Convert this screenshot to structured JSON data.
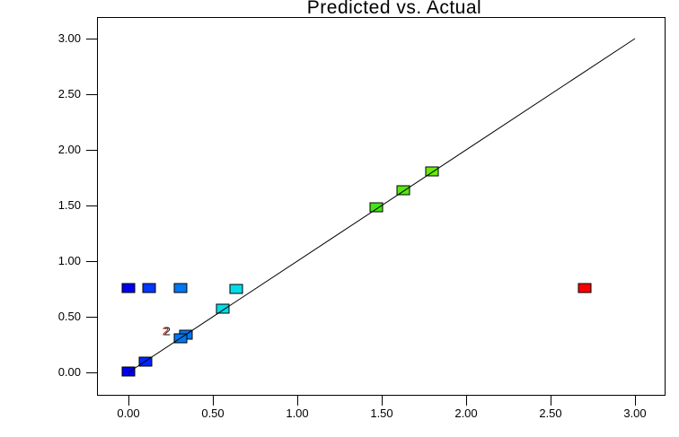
{
  "title": "Predicted vs. Actual",
  "axes": {
    "x_tick_labels": [
      "0.00",
      "0.50",
      "1.00",
      "1.50",
      "2.00",
      "2.50",
      "3.00"
    ],
    "y_tick_labels": [
      "3.00",
      "2.50",
      "2.00",
      "1.50",
      "1.00",
      "0.50",
      "0.00"
    ]
  },
  "chart_data": {
    "type": "scatter",
    "title": "Predicted vs. Actual",
    "xlabel": "",
    "ylabel": "",
    "xlim": [
      -0.19,
      3.19
    ],
    "ylim": [
      -0.21,
      3.19
    ],
    "grid": false,
    "legend": null,
    "identity_line": {
      "x": [
        0,
        3
      ],
      "y": [
        0,
        3
      ]
    },
    "points": [
      {
        "x": 0.0,
        "y": 0.01,
        "color": "#0000EE"
      },
      {
        "x": 0.1,
        "y": 0.1,
        "color": "#0026FF"
      },
      {
        "x": 0.34,
        "y": 0.34,
        "color": "#0077F2"
      },
      {
        "x": 0.31,
        "y": 0.31,
        "color": "#0077F2"
      },
      {
        "x": 0.56,
        "y": 0.57,
        "color": "#00DDE8"
      },
      {
        "x": 1.47,
        "y": 1.48,
        "color": "#46E414"
      },
      {
        "x": 1.63,
        "y": 1.64,
        "color": "#55E70F"
      },
      {
        "x": 1.8,
        "y": 1.81,
        "color": "#69EA08"
      },
      {
        "x": 0.0,
        "y": 0.76,
        "color": "#0000EE"
      },
      {
        "x": 0.12,
        "y": 0.76,
        "color": "#0038FF"
      },
      {
        "x": 0.31,
        "y": 0.76,
        "color": "#0077F2"
      },
      {
        "x": 0.64,
        "y": 0.75,
        "color": "#00DDE8"
      },
      {
        "x": 2.7,
        "y": 0.76,
        "color": "#F90000"
      }
    ],
    "annotations": [
      {
        "text": "2",
        "x": 0.23,
        "y": 0.37
      }
    ]
  }
}
